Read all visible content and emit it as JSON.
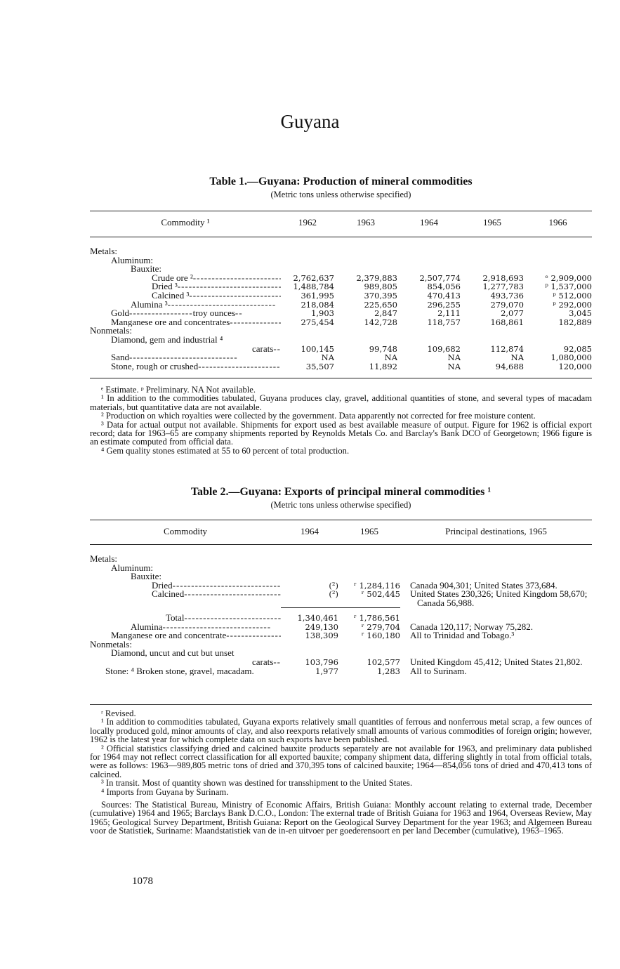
{
  "page_title": "Guyana",
  "page_number": "1078",
  "table1": {
    "title": "Table 1.—Guyana: Production of mineral commodities",
    "subtitle": "(Metric tons unless otherwise specified)",
    "headers": [
      "Commodity ¹",
      "1962",
      "1963",
      "1964",
      "1965",
      "1966"
    ],
    "rows": [
      {
        "label": "Metals:",
        "indent": 0,
        "values": []
      },
      {
        "label": "Aluminum:",
        "indent": 1,
        "values": []
      },
      {
        "label": "Bauxite:",
        "indent": 2,
        "values": []
      },
      {
        "label": "Crude ore ²",
        "indent": 3,
        "dots": true,
        "values": [
          "2,762,637",
          "2,379,883",
          "2,507,774",
          "2,918,693",
          "ᵉ 2,909,000"
        ]
      },
      {
        "label": "Dried ³",
        "indent": 3,
        "dots": true,
        "values": [
          "1,488,784",
          "989,805",
          "854,056",
          "1,277,783",
          "ᵖ 1,537,000"
        ]
      },
      {
        "label": "Calcined ³",
        "indent": 3,
        "dots": true,
        "values": [
          "361,995",
          "370,395",
          "470,413",
          "493,736",
          "ᵖ 512,000"
        ]
      },
      {
        "label": "Alumina ³",
        "indent": 2,
        "dots": true,
        "values": [
          "218,084",
          "225,650",
          "296,255",
          "279,070",
          "ᵖ 292,000"
        ]
      },
      {
        "label": "Gold",
        "indent": 1,
        "dots": true,
        "unit": "troy ounces",
        "values": [
          "1,903",
          "2,847",
          "2,111",
          "2,077",
          "3,045"
        ]
      },
      {
        "label": "Manganese ore and concentrates",
        "indent": 1,
        "dots": true,
        "values": [
          "275,454",
          "142,728",
          "118,757",
          "168,861",
          "182,889"
        ]
      },
      {
        "label": "Nonmetals:",
        "indent": 0,
        "values": []
      },
      {
        "label": "Diamond, gem and industrial ⁴",
        "indent": 1,
        "values": []
      },
      {
        "label": "carats",
        "indent": 1,
        "right": true,
        "dots": true,
        "values": [
          "100,145",
          "99,748",
          "109,682",
          "112,874",
          "92,085"
        ]
      },
      {
        "label": "Sand",
        "indent": 1,
        "dots": true,
        "values": [
          "NA",
          "NA",
          "NA",
          "NA",
          "1,080,000"
        ]
      },
      {
        "label": "Stone, rough or crushed",
        "indent": 1,
        "dots": true,
        "values": [
          "35,507",
          "11,892",
          "NA",
          "94,688",
          "120,000"
        ]
      }
    ],
    "footnotes": [
      "ᵉ Estimate.      ᵖ Preliminary.      NA Not available.",
      "¹ In addition to the commodities tabulated, Guyana produces clay, gravel, additional quantities of stone, and several types of macadam materials, but quantitative data are not available.",
      "² Production on which royalties were collected by the government. Data apparently not corrected for free moisture content.",
      "³ Data for actual output not available. Shipments for export used as best available measure of output. Figure for 1962 is official export record; data for 1963–65 are company shipments reported by Reynolds Metals Co. and Barclay's Bank DCO of Georgetown; 1966 figure is an estimate computed from official data.",
      "⁴ Gem quality stones estimated at 55 to 60 percent of total production."
    ]
  },
  "table2": {
    "title": "Table 2.—Guyana: Exports of principal mineral commodities ¹",
    "subtitle": "(Metric tons unless otherwise specified)",
    "headers": [
      "Commodity",
      "1964",
      "1965",
      "Principal destinations, 1965"
    ],
    "rows": [
      {
        "label": "Metals:",
        "indent": 0,
        "values": []
      },
      {
        "label": "Aluminum:",
        "indent": 1,
        "values": []
      },
      {
        "label": "Bauxite:",
        "indent": 2,
        "values": []
      },
      {
        "label": "Dried",
        "indent": 3,
        "dots": true,
        "values": [
          "(²)",
          "ʳ 1,284,116"
        ],
        "dest": "Canada 904,301; United States 373,684."
      },
      {
        "label": "Calcined",
        "indent": 3,
        "dots": true,
        "values": [
          "(²)",
          "ʳ 502,445"
        ],
        "dest": "United States 230,326; United Kingdom 58,670; Canada 56,988."
      },
      {
        "label": "Total",
        "indent": 4,
        "dots": true,
        "total": true,
        "values": [
          "1,340,461",
          "ʳ 1,786,561"
        ]
      },
      {
        "label": "Alumina",
        "indent": 2,
        "dots": true,
        "values": [
          "249,130",
          "ʳ 279,704"
        ],
        "dest": "Canada 120,117; Norway 75,282."
      },
      {
        "label": "Manganese ore and concentrate",
        "indent": 1,
        "dots": true,
        "values": [
          "138,309",
          "ʳ 160,180"
        ],
        "dest": "All to Trinidad and Tobago.³"
      },
      {
        "label": "Nonmetals:",
        "indent": 0,
        "values": []
      },
      {
        "label": "Diamond, uncut and cut but unset",
        "indent": 1,
        "values": []
      },
      {
        "label": "carats",
        "indent": 1,
        "right": true,
        "dots": true,
        "values": [
          "103,796",
          "102,577"
        ],
        "dest": "United Kingdom 45,412; United States 21,802."
      },
      {
        "label": "Stone: ⁴ Broken stone, gravel, macadam.",
        "indent": 1,
        "wrap": true,
        "values": [
          "1,977",
          "1,283"
        ],
        "dest": "All to Surinam."
      }
    ],
    "footnotes": [
      "ʳ Revised.",
      "¹ In addition to commodities tabulated, Guyana exports relatively small quantities of ferrous and nonferrous metal scrap, a few ounces of locally produced gold, minor amounts of clay, and also reexports relatively small amounts of various commodities of foreign origin; however, 1962 is the latest year for which complete data on such exports have been published.",
      "² Official statistics classifying dried and calcined bauxite products separately are not available for 1963, and preliminary data published for 1964 may not reflect correct classification for all exported bauxite; company shipment data, differing slightly in total from official totals, were as follows: 1963—989,805 metric tons of dried and 370,395 tons of calcined bauxite; 1964—854,056 tons of dried and 470,413 tons of calcined.",
      "³ In transit. Most of quantity shown was destined for transshipment to the United States.",
      "⁴ Imports from Guyana by Surinam."
    ],
    "sources": "Sources: The Statistical Bureau, Ministry of Economic Affairs, British Guiana: Monthly account relating to external trade, December (cumulative) 1964 and 1965; Barclays Bank D.C.O., London: The external trade of British Guiana for 1963 and 1964, Overseas Review, May 1965; Geological Survey Department, British Guiana: Report on the Geological Survey Department for the year 1963; and Algemeen Bureau voor de Statistiek, Suriname: Maandstatistiek van de in-en uitvoer per goederensoort en per land December (cumulative), 1963–1965."
  }
}
